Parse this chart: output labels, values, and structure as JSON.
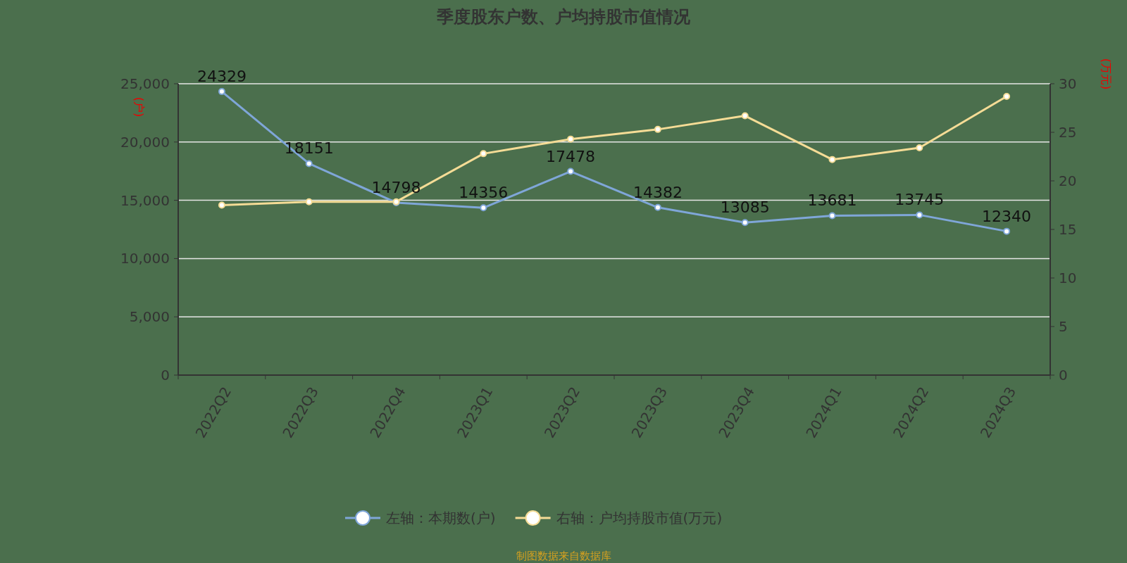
{
  "chart_data": {
    "type": "line",
    "title": "季度股东户数、户均持股市值情况",
    "categories": [
      "2022Q2",
      "2022Q3",
      "2022Q4",
      "2023Q1",
      "2023Q2",
      "2023Q3",
      "2023Q4",
      "2024Q1",
      "2024Q2",
      "2024Q3"
    ],
    "ylabel": "(户)",
    "y2label": "(万元)",
    "ylim": [
      0,
      25000
    ],
    "yticks": [
      {
        "value": 0,
        "label": "0"
      },
      {
        "value": 5000,
        "label": "5,000"
      },
      {
        "value": 10000,
        "label": "10,000"
      },
      {
        "value": 15000,
        "label": "15,000"
      },
      {
        "value": 20000,
        "label": "20,000"
      },
      {
        "value": 25000,
        "label": "25,000"
      }
    ],
    "y2lim": [
      0,
      30
    ],
    "y2ticks": [
      0,
      5,
      10,
      15,
      20,
      25,
      30
    ],
    "series": [
      {
        "name": "左轴：本期数(户)",
        "color": "#7fa6d8",
        "axis": "y",
        "data_labels": true,
        "values": [
          24329,
          18151,
          14798,
          14356,
          17478,
          14382,
          13085,
          13681,
          13745,
          12340
        ]
      },
      {
        "name": "右轴：户均持股市值(万元)",
        "color": "#f5dc96",
        "axis": "y2",
        "values": [
          17.5,
          17.85,
          17.85,
          22.8,
          24.3,
          25.3,
          26.7,
          22.2,
          23.4,
          28.7
        ]
      }
    ],
    "marker": "circle",
    "grid": "y",
    "legend": "bottom",
    "annotations": [
      "制图数据来自数据库"
    ]
  }
}
